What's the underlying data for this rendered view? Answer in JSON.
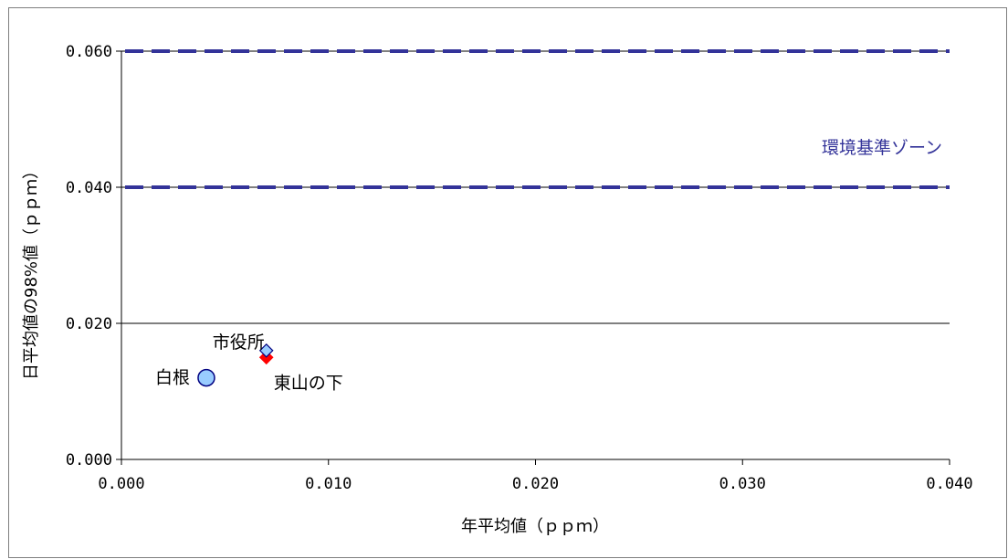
{
  "chart_data": {
    "type": "scatter",
    "xlabel": "年平均値（ｐｐｍ）",
    "ylabel": "日平均値の98%値（ｐｐｍ）",
    "xlim": [
      0.0,
      0.04
    ],
    "ylim": [
      0.0,
      0.06
    ],
    "x_ticks": [
      "0.000",
      "0.010",
      "0.020",
      "0.030",
      "0.040"
    ],
    "y_ticks": [
      "0.000",
      "0.020",
      "0.040",
      "0.060"
    ],
    "gridlines_y": [
      0.02,
      0.04,
      0.06
    ],
    "points": [
      {
        "label": "白根",
        "x": 0.0041,
        "y": 0.012,
        "marker": "circle",
        "color": "#99ccff"
      },
      {
        "label": "市役所",
        "x": 0.007,
        "y": 0.016,
        "marker": "diamond",
        "color": "#99ccff"
      },
      {
        "label": "東山の下",
        "x": 0.007,
        "y": 0.015,
        "marker": "diamond",
        "color": "#ff0000"
      }
    ],
    "reference_lines": [
      {
        "y": 0.04,
        "style": "dashed",
        "color": "#333399"
      },
      {
        "y": 0.06,
        "style": "dashed",
        "color": "#333399"
      }
    ],
    "annotation": {
      "text": "環境基準ゾーン",
      "color": "#333399"
    }
  }
}
